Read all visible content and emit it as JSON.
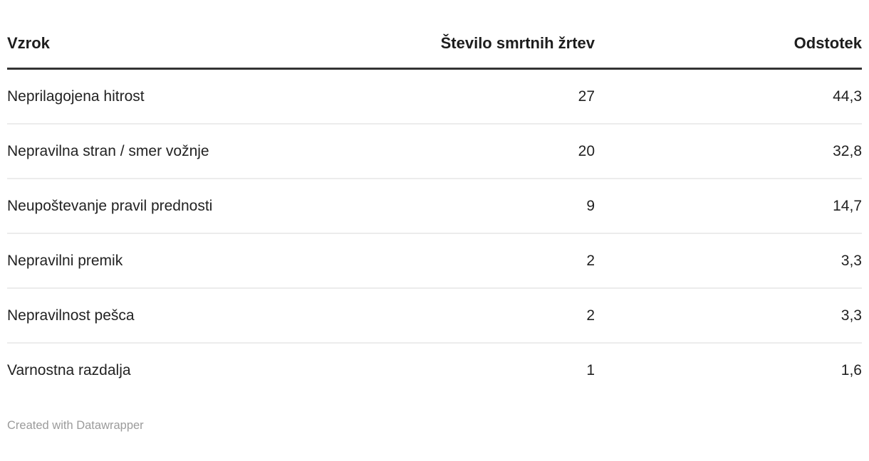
{
  "chart_data": {
    "type": "table",
    "columns": [
      "Vzrok",
      "Število smrtnih žrtev",
      "Odstotek"
    ],
    "rows": [
      [
        "Neprilagojena hitrost",
        "27",
        "44,3"
      ],
      [
        "Nepravilna stran / smer vožnje",
        "20",
        "32,8"
      ],
      [
        "Neupoštevanje pravil prednosti",
        "9",
        "14,7"
      ],
      [
        "Nepravilni premik",
        "2",
        "3,3"
      ],
      [
        "Nepravilnost pešca",
        "2",
        "3,3"
      ],
      [
        "Varnostna razdalja",
        "1",
        "1,6"
      ]
    ],
    "title": "",
    "legend_position": "none",
    "grid": "horizontal-row-separators"
  },
  "footer": {
    "credit": "Created with Datawrapper"
  },
  "colors": {
    "background": "#ffffff",
    "header_text": "#1d1d1d",
    "body_text": "#222222",
    "header_rule": "#333333",
    "row_separator": "#ececec",
    "footer_text": "#9b9b9b"
  }
}
